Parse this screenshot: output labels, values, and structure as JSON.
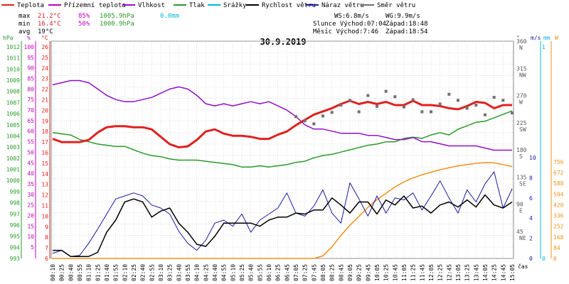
{
  "legend": [
    {
      "key": "teplota",
      "label": "Teplota",
      "color": "#e02020"
    },
    {
      "key": "prizemni",
      "label": "Přízemní teplota",
      "color": "#c000c0"
    },
    {
      "key": "vlhkost",
      "label": "Vlhkost",
      "color": "#9010c8"
    },
    {
      "key": "tlak",
      "label": "Tlak",
      "color": "#2a9a2a"
    },
    {
      "key": "srazky",
      "label": "Srážky",
      "color": "#00b8d8"
    },
    {
      "key": "rychlost",
      "label": "Rychlost větru",
      "color": "#000000"
    },
    {
      "key": "naraz",
      "label": "Náraz větru",
      "color": "#1a1aa0"
    },
    {
      "key": "smer",
      "label": "Směr větru",
      "color": "#707070"
    }
  ],
  "stats": {
    "max": {
      "label": "max",
      "temp": "21.2°C",
      "hum": "85%",
      "press": "1005.9hPa",
      "rain": "0.0mm"
    },
    "min": {
      "label": "min",
      "temp": "16.4°C",
      "hum": "50%",
      "press": "1000.9hPa"
    },
    "avg": {
      "label": "avg",
      "temp": "19°C"
    }
  },
  "wind_info": {
    "ws": "WS:6.8m/s",
    "wg": "WG:9.9m/s",
    "sunrise_label": "Slunce Východ:07:04",
    "sunset_label": "Západ:18:48",
    "moonrise_label": "Měsíc  Východ:7:46",
    "moonset_label": "Západ:18:54"
  },
  "date": "30.9.2019",
  "axes": {
    "hpa": {
      "unit": "hPa",
      "color": "#2a9a2a",
      "ticks": [
        "1012",
        "1011",
        "1010",
        "1009",
        "1008",
        "1007",
        "1006",
        "1005",
        "1004",
        "1003",
        "1002",
        "1001",
        "1000",
        "999",
        "998",
        "997",
        "996",
        "995",
        "994",
        "993"
      ]
    },
    "pct": {
      "unit": "%",
      "color": "#c000c0",
      "ticks": [
        "100",
        "95",
        "90",
        "85",
        "80",
        "75",
        "70",
        "65",
        "60",
        "55",
        "50",
        "45",
        "40",
        "35",
        "30",
        "25",
        "20",
        "15",
        "10",
        "5"
      ]
    },
    "celsius": {
      "unit": "°C",
      "color": "#e02020",
      "ticks": [
        "26",
        "25",
        "24",
        "23",
        "22",
        "21",
        "20",
        "19",
        "18",
        "17",
        "16",
        "15",
        "14",
        "13",
        "12",
        "11",
        "10",
        "9",
        "8",
        "7",
        "6"
      ]
    },
    "direction": {
      "unit": "°",
      "ticks": [
        {
          "deg": "360",
          "dir": "N"
        },
        {
          "deg": "315",
          "dir": "NW"
        },
        {
          "deg": "270",
          "dir": "W"
        },
        {
          "deg": "225",
          "dir": "SW"
        },
        {
          "deg": "180",
          "dir": "S"
        },
        {
          "deg": "135",
          "dir": "SE"
        },
        {
          "deg": "90",
          "dir": "E"
        },
        {
          "deg": "45",
          "dir": "NE"
        }
      ]
    },
    "ms": {
      "unit": "m/s",
      "ticks": [
        "10",
        "8",
        "6",
        "4",
        "2",
        "0"
      ]
    },
    "mm": {
      "unit": "mm",
      "ticks": [
        "1",
        "0"
      ]
    },
    "watt": {
      "unit": "W",
      "ticks": [
        "756",
        "672",
        "588",
        "504",
        "420",
        "336",
        "252",
        "168",
        "84",
        "0"
      ]
    },
    "time": {
      "unit": "čas",
      "ticks": [
        "00:10",
        "00:25",
        "00:40",
        "00:55",
        "01:10",
        "01:25",
        "01:40",
        "01:55",
        "02:10",
        "02:25",
        "02:40",
        "02:55",
        "03:10",
        "03:25",
        "03:40",
        "03:55",
        "04:10",
        "04:25",
        "04:40",
        "04:55",
        "05:10",
        "05:25",
        "05:40",
        "05:55",
        "06:10",
        "06:25",
        "06:45",
        "07:05",
        "07:25",
        "07:45",
        "08:05",
        "08:25",
        "08:45",
        "09:05",
        "09:25",
        "09:45",
        "10:05",
        "10:25",
        "10:45",
        "11:05",
        "11:25",
        "11:45",
        "12:05",
        "12:25",
        "12:45",
        "13:05",
        "13:25",
        "13:45",
        "14:05",
        "14:25",
        "14:45",
        "15:05"
      ]
    }
  },
  "colors": {
    "teplota": "#e02020",
    "vlhkost": "#9010c8",
    "tlak": "#2a9a2a",
    "rychlost": "#000000",
    "naraz": "#1a1aa0",
    "smer": "#707070",
    "solar": "#f0901a",
    "ms_axis": "#1a1aa0",
    "mm_axis": "#00b8d8",
    "w_axis": "#f0901a",
    "grid": "#c8c8c8"
  },
  "chart_data": {
    "type": "line",
    "title": "30.9.2019",
    "x": [
      "00:10",
      "00:25",
      "00:40",
      "00:55",
      "01:10",
      "01:25",
      "01:40",
      "01:55",
      "02:10",
      "02:25",
      "02:40",
      "02:55",
      "03:10",
      "03:25",
      "03:40",
      "03:55",
      "04:10",
      "04:25",
      "04:40",
      "04:55",
      "05:10",
      "05:25",
      "05:40",
      "05:55",
      "06:10",
      "06:25",
      "06:45",
      "07:05",
      "07:25",
      "07:45",
      "08:05",
      "08:25",
      "08:45",
      "09:05",
      "09:25",
      "09:45",
      "10:05",
      "10:25",
      "10:45",
      "11:05",
      "11:25",
      "11:45",
      "12:05",
      "12:25",
      "12:45",
      "13:05",
      "13:25",
      "13:45",
      "14:05",
      "14:25",
      "14:45",
      "15:05"
    ],
    "series": [
      {
        "name": "Teplota",
        "unit": "°C",
        "values": [
          17.3,
          17.0,
          17.0,
          17.0,
          17.2,
          17.9,
          18.4,
          18.5,
          18.5,
          18.4,
          18.4,
          18.2,
          17.5,
          16.8,
          16.5,
          16.6,
          17.2,
          18.0,
          18.2,
          17.8,
          17.6,
          17.6,
          17.5,
          17.3,
          17.3,
          17.7,
          18.0,
          18.6,
          19.1,
          19.6,
          19.9,
          20.2,
          20.6,
          20.9,
          20.6,
          20.8,
          20.6,
          20.8,
          20.5,
          20.5,
          20.9,
          20.5,
          20.5,
          20.4,
          20.2,
          20.1,
          20.4,
          20.8,
          20.7,
          20.2,
          20.5,
          20.5
        ]
      },
      {
        "name": "Vlhkost",
        "unit": "%",
        "values": [
          82,
          83,
          84,
          84,
          83,
          80,
          77,
          75,
          74,
          74,
          75,
          76,
          78,
          80,
          81,
          80,
          77,
          73,
          72,
          73,
          72,
          73,
          74,
          73,
          74,
          72,
          70,
          67,
          63,
          61,
          61,
          60,
          59,
          59,
          59,
          58,
          58,
          57,
          56,
          56,
          57,
          55,
          55,
          54,
          53,
          53,
          53,
          53,
          52,
          51,
          51,
          51
        ]
      },
      {
        "name": "Tlak",
        "unit": "hPa",
        "values": [
          1004.0,
          1003.9,
          1003.8,
          1003.4,
          1003.2,
          1003.0,
          1002.9,
          1002.8,
          1002.8,
          1002.5,
          1002.2,
          1002.0,
          1001.9,
          1001.7,
          1001.6,
          1001.6,
          1001.6,
          1001.5,
          1001.4,
          1001.3,
          1001.2,
          1001.0,
          1001.0,
          1001.1,
          1001.0,
          1001.1,
          1001.2,
          1001.4,
          1001.5,
          1001.8,
          1002.0,
          1002.1,
          1002.3,
          1002.5,
          1002.7,
          1002.9,
          1003.0,
          1003.2,
          1003.2,
          1003.5,
          1003.6,
          1003.5,
          1003.8,
          1004.0,
          1003.8,
          1004.3,
          1004.6,
          1004.9,
          1005.0,
          1005.3,
          1005.6,
          1005.9
        ]
      },
      {
        "name": "Rychlost větru",
        "unit": "m/s",
        "values": [
          0.8,
          0.8,
          0.2,
          0.2,
          0.2,
          0.6,
          2.6,
          3.8,
          5.6,
          5.9,
          5.6,
          4.1,
          4.7,
          5.0,
          3.5,
          2.6,
          1.4,
          1.2,
          2.2,
          3.5,
          3.5,
          3.5,
          3.5,
          3.2,
          3.8,
          4.1,
          4.1,
          4.5,
          4.4,
          4.8,
          4.8,
          6.0,
          5.3,
          4.5,
          5.6,
          5.6,
          4.4,
          5.8,
          5.3,
          6.2,
          5.0,
          5.2,
          4.5,
          5.3,
          5.6,
          5.1,
          5.8,
          5.1,
          6.3,
          5.3,
          5.0,
          5.6
        ]
      },
      {
        "name": "Náraz větru",
        "unit": "m/s",
        "values": [
          0.5,
          0.8,
          0.2,
          0.3,
          1.5,
          2.9,
          4.4,
          5.9,
          6.2,
          6.5,
          6.2,
          5.3,
          5.0,
          4.4,
          2.7,
          1.5,
          0.8,
          1.8,
          3.5,
          3.8,
          3.2,
          4.4,
          2.6,
          3.8,
          4.4,
          5.0,
          6.5,
          4.5,
          4.2,
          5.2,
          6.8,
          4.5,
          3.5,
          7.5,
          5.9,
          4.2,
          6.2,
          4.5,
          6.0,
          5.8,
          6.5,
          4.8,
          6.2,
          7.7,
          6.0,
          4.5,
          6.8,
          5.6,
          7.4,
          8.6,
          5.0,
          6.9
        ]
      },
      {
        "name": "Směr větru",
        "unit": "°",
        "values": [
          null,
          null,
          null,
          null,
          null,
          null,
          null,
          null,
          null,
          null,
          null,
          null,
          null,
          null,
          null,
          null,
          null,
          null,
          null,
          null,
          null,
          null,
          null,
          null,
          null,
          null,
          null,
          235,
          228,
          223,
          236,
          242,
          254,
          262,
          243,
          270,
          252,
          277,
          268,
          251,
          263,
          243,
          243,
          256,
          272,
          262,
          249,
          254,
          238,
          267,
          262,
          241
        ]
      },
      {
        "name": "Solar",
        "unit": "W",
        "values": [
          0,
          0,
          0,
          0,
          0,
          0,
          0,
          0,
          0,
          0,
          0,
          0,
          0,
          0,
          0,
          0,
          0,
          0,
          0,
          0,
          0,
          0,
          0,
          0,
          0,
          0,
          0,
          0,
          0,
          0,
          20,
          90,
          180,
          260,
          330,
          400,
          460,
          510,
          560,
          600,
          630,
          655,
          675,
          695,
          710,
          725,
          735,
          745,
          750,
          748,
          735,
          720
        ]
      }
    ],
    "ylim_temp": [
      6,
      26
    ],
    "ylim_hum": [
      5,
      100
    ],
    "ylim_press": [
      993,
      1012
    ],
    "ylim_wind": [
      0,
      10
    ],
    "ylim_dir": [
      0,
      360
    ],
    "ylim_solar": [
      0,
      756
    ],
    "grid": true
  }
}
